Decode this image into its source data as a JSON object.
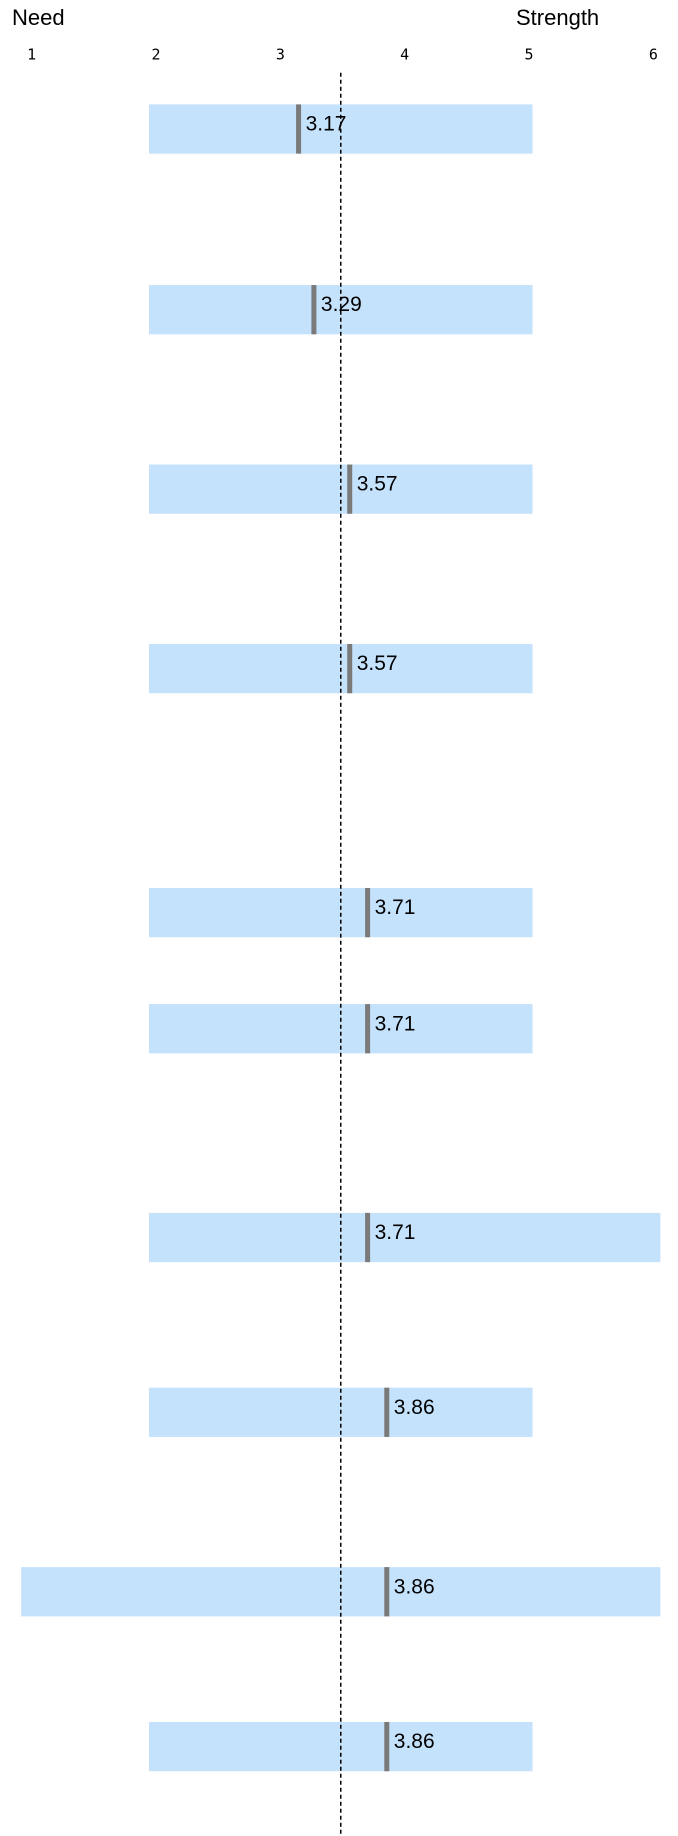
{
  "chart_data": {
    "type": "range-marker",
    "x_label_left": "Need",
    "x_label_right": "Strength",
    "xlim": [
      1,
      6
    ],
    "xticks": [
      1,
      2,
      3,
      4,
      5,
      6
    ],
    "reference_line": 3.5,
    "bar_color": "#c5e2fc",
    "marker_color": "#7a7a7a",
    "rows": [
      {
        "low": 2,
        "high": 5,
        "value": 3.17
      },
      {
        "low": 2,
        "high": 5,
        "value": 3.29
      },
      {
        "low": 2,
        "high": 5,
        "value": 3.57
      },
      {
        "low": 2,
        "high": 5,
        "value": 3.57
      },
      {
        "low": 2,
        "high": 5,
        "value": 3.71
      },
      {
        "low": 2,
        "high": 5,
        "value": 3.71
      },
      {
        "low": 2,
        "high": 6,
        "value": 3.71
      },
      {
        "low": 2,
        "high": 5,
        "value": 3.86
      },
      {
        "low": 1,
        "high": 6,
        "value": 3.86
      },
      {
        "low": 2,
        "high": 5,
        "value": 3.86
      }
    ]
  }
}
